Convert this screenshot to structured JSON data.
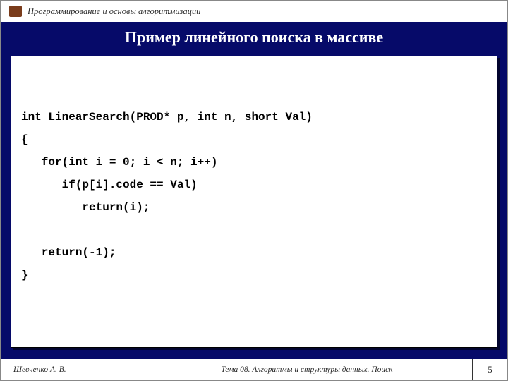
{
  "colors": {
    "slide_bg": "#060a69",
    "panel_bg": "#ffffff",
    "text": "#000000",
    "footer_text": "#2a2a2a",
    "icon": "#7a3c1b"
  },
  "typography": {
    "title_fontsize": 22,
    "code_fontsize": 16,
    "header_fontsize": 12.5,
    "footer_fontsize": 11.5,
    "code_font": "Courier New",
    "body_font": "Times New Roman"
  },
  "header": {
    "course_title": "Программирование и основы алгоритмизации"
  },
  "slide_title": "Пример линейного поиска в массиве",
  "code_block": "int LinearSearch(PROD* p, int n, short Val)\n{\n   for(int i = 0; i < n; i++)\n      if(p[i].code == Val)\n         return(i);\n\n   return(-1);\n}",
  "footer": {
    "author": "Шевченко А. В.",
    "topic": "Тема 08. Алгоритмы и структуры данных. Поиск",
    "page_number": "5"
  }
}
